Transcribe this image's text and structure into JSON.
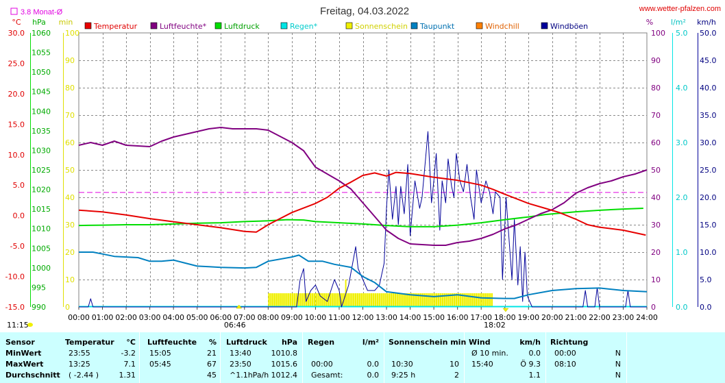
{
  "header": {
    "title": "Freitag, 04.03.2022",
    "site": "www.wetter-pfalzen.com",
    "monthly_avg_label": "3.8 Monat-Ø"
  },
  "colors": {
    "temperature": "#e60000",
    "humidity": "#800080",
    "pressure": "#00dd00",
    "rain": "#00e5e5",
    "sunshine": "#f0f000",
    "dewpoint": "#0080c0",
    "windchill": "#ff8000",
    "gust": "#000099",
    "monthly_avg": "#e000e0",
    "table_bg": "#ccffff"
  },
  "chart_data": {
    "type": "line",
    "x_unit": "time of day",
    "xticks": [
      "00:00",
      "01:00",
      "02:00",
      "03:00",
      "04:00",
      "05:00",
      "06:00",
      "07:00",
      "08:00",
      "09:00",
      "10:00",
      "11:00",
      "12:00",
      "13:00",
      "14:00",
      "15:00",
      "16:00",
      "17:00",
      "18:00",
      "19:00",
      "20:00",
      "21:00",
      "22:00",
      "23:00",
      "24:00"
    ],
    "sunrise": "06:46",
    "sunset": "18:02",
    "sunshine_duration_label": "11:15",
    "legend": [
      "Temperatur",
      "Luftfeuchte*",
      "Luftdruck",
      "Regen*",
      "Sonnenschein",
      "Taupunkt",
      "Windchill",
      "Windböen"
    ],
    "axes": {
      "temp": {
        "unit": "°C",
        "min": -15,
        "max": 30,
        "ticks": [
          "30.0",
          "25.0",
          "20.0",
          "15.0",
          "10.0",
          "5.0",
          "0.0",
          "-5.0",
          "-10.0",
          "-15.0"
        ]
      },
      "pressure": {
        "unit": "hPa",
        "min": 990,
        "max": 1060,
        "ticks": [
          "1060",
          "1055",
          "1050",
          "1045",
          "1040",
          "1035",
          "1030",
          "1025",
          "1020",
          "1015",
          "1010",
          "1005",
          "1000",
          "995",
          "990"
        ]
      },
      "sun": {
        "unit": "min",
        "min": 0,
        "max": 100,
        "ticks": [
          "100",
          "90",
          "80",
          "70",
          "60",
          "50",
          "40",
          "30",
          "20",
          "10",
          "0"
        ]
      },
      "humidity": {
        "unit": "%",
        "min": 0,
        "max": 100,
        "ticks": [
          "100",
          "90",
          "80",
          "70",
          "60",
          "50",
          "40",
          "30",
          "20",
          "10",
          "0"
        ]
      },
      "rain": {
        "unit": "l/m²",
        "min": 0,
        "max": 5,
        "ticks": [
          "5.0",
          "4.0",
          "3.0",
          "2.0",
          "1.0",
          "0.0"
        ]
      },
      "wind": {
        "unit": "km/h",
        "min": 0,
        "max": 50,
        "ticks": [
          "50.0",
          "45.0",
          "40.0",
          "35.0",
          "30.0",
          "25.0",
          "20.0",
          "15.0",
          "10.0",
          "5.0",
          "0.0"
        ]
      }
    },
    "monthly_avg_temp": 3.8,
    "series": [
      {
        "name": "Temperatur",
        "axis": "temp",
        "points": [
          [
            0,
            0.9
          ],
          [
            1,
            0.6
          ],
          [
            2,
            0.1
          ],
          [
            3,
            -0.5
          ],
          [
            4,
            -1.0
          ],
          [
            5,
            -1.5
          ],
          [
            6,
            -2.0
          ],
          [
            7,
            -2.6
          ],
          [
            7.5,
            -2.7
          ],
          [
            8,
            -1.5
          ],
          [
            9,
            0.5
          ],
          [
            10,
            2.0
          ],
          [
            10.5,
            3.0
          ],
          [
            11,
            4.5
          ],
          [
            11.5,
            5.5
          ],
          [
            12,
            6.6
          ],
          [
            12.5,
            7.0
          ],
          [
            13,
            6.5
          ],
          [
            13.4,
            7.1
          ],
          [
            14,
            6.9
          ],
          [
            15,
            6.3
          ],
          [
            16,
            5.8
          ],
          [
            17,
            5.0
          ],
          [
            17.5,
            4.3
          ],
          [
            18,
            3.5
          ],
          [
            19,
            2.0
          ],
          [
            19.7,
            1.2
          ],
          [
            20.3,
            0.5
          ],
          [
            21,
            -0.6
          ],
          [
            21.5,
            -1.5
          ],
          [
            22,
            -1.9
          ],
          [
            23,
            -2.4
          ],
          [
            23.95,
            -3.2
          ]
        ]
      },
      {
        "name": "Luftfeuchte*",
        "axis": "humidity",
        "points": [
          [
            0,
            59
          ],
          [
            0.5,
            60
          ],
          [
            1,
            59
          ],
          [
            1.5,
            60.5
          ],
          [
            2,
            59
          ],
          [
            3,
            58.5
          ],
          [
            3.5,
            60.5
          ],
          [
            4,
            62
          ],
          [
            4.5,
            63
          ],
          [
            5,
            64
          ],
          [
            5.5,
            65
          ],
          [
            6,
            65.5
          ],
          [
            6.5,
            65
          ],
          [
            7,
            65
          ],
          [
            7.5,
            65
          ],
          [
            8,
            64.5
          ],
          [
            9,
            60
          ],
          [
            9.5,
            57
          ],
          [
            10,
            51
          ],
          [
            11,
            46
          ],
          [
            11.5,
            43
          ],
          [
            12,
            38
          ],
          [
            12.5,
            33
          ],
          [
            13,
            28
          ],
          [
            13.5,
            25
          ],
          [
            14,
            23
          ],
          [
            15,
            22.5
          ],
          [
            15.5,
            22.5
          ],
          [
            16,
            23.5
          ],
          [
            16.5,
            24
          ],
          [
            17,
            25
          ],
          [
            17.5,
            26.5
          ],
          [
            18,
            28.5
          ],
          [
            18.5,
            30
          ],
          [
            19,
            32
          ],
          [
            19.5,
            34
          ],
          [
            20,
            35.5
          ],
          [
            20.5,
            38
          ],
          [
            21,
            41.5
          ],
          [
            21.5,
            43.5
          ],
          [
            22,
            45
          ],
          [
            22.5,
            46
          ],
          [
            23,
            47.5
          ],
          [
            23.5,
            48.5
          ],
          [
            24,
            50
          ]
        ]
      },
      {
        "name": "Luftdruck",
        "axis": "pressure",
        "points": [
          [
            0,
            1010.8
          ],
          [
            1,
            1010.9
          ],
          [
            2,
            1011.0
          ],
          [
            3,
            1011.0
          ],
          [
            4,
            1011.2
          ],
          [
            5,
            1011.4
          ],
          [
            6,
            1011.5
          ],
          [
            7,
            1011.8
          ],
          [
            8,
            1012.0
          ],
          [
            8.8,
            1012.3
          ],
          [
            9.5,
            1012.2
          ],
          [
            10,
            1011.8
          ],
          [
            11,
            1011.5
          ],
          [
            12,
            1011.2
          ],
          [
            13,
            1010.8
          ],
          [
            14,
            1010.5
          ],
          [
            15,
            1010.5
          ],
          [
            16,
            1010.9
          ],
          [
            17,
            1011.5
          ],
          [
            18,
            1012.3
          ],
          [
            19,
            1013.0
          ],
          [
            19.7,
            1013.6
          ],
          [
            21,
            1014.3
          ],
          [
            22,
            1014.7
          ],
          [
            23,
            1015.0
          ],
          [
            23.85,
            1015.2
          ]
        ]
      },
      {
        "name": "Taupunkt",
        "axis": "temp",
        "points": [
          [
            0,
            -6.0
          ],
          [
            0.6,
            -6.0
          ],
          [
            1,
            -6.3
          ],
          [
            1.5,
            -6.7
          ],
          [
            2,
            -6.8
          ],
          [
            2.5,
            -6.9
          ],
          [
            3,
            -7.5
          ],
          [
            3.5,
            -7.5
          ],
          [
            4,
            -7.3
          ],
          [
            4.5,
            -7.8
          ],
          [
            5,
            -8.3
          ],
          [
            5.5,
            -8.4
          ],
          [
            6,
            -8.5
          ],
          [
            7,
            -8.6
          ],
          [
            7.5,
            -8.5
          ],
          [
            8,
            -7.5
          ],
          [
            9,
            -6.8
          ],
          [
            9.3,
            -6.5
          ],
          [
            9.7,
            -7.5
          ],
          [
            10.3,
            -7.5
          ],
          [
            10.8,
            -8.0
          ],
          [
            11.5,
            -8.5
          ],
          [
            12,
            -10.0
          ],
          [
            12.5,
            -11.0
          ],
          [
            13,
            -12.5
          ],
          [
            14,
            -13.0
          ],
          [
            15,
            -13.3
          ],
          [
            16,
            -13.0
          ],
          [
            17,
            -13.5
          ],
          [
            18,
            -13.6
          ],
          [
            18.4,
            -13.6
          ],
          [
            19,
            -13.0
          ],
          [
            20,
            -12.3
          ],
          [
            21,
            -12.0
          ],
          [
            22,
            -11.9
          ],
          [
            23,
            -12.3
          ],
          [
            24,
            -12.5
          ]
        ]
      },
      {
        "name": "Windböen",
        "axis": "wind",
        "points": [
          [
            0,
            0
          ],
          [
            0.4,
            0
          ],
          [
            0.5,
            1.5
          ],
          [
            0.6,
            0
          ],
          [
            9.2,
            0
          ],
          [
            9.35,
            5
          ],
          [
            9.5,
            7
          ],
          [
            9.6,
            1
          ],
          [
            9.8,
            3
          ],
          [
            10,
            4
          ],
          [
            10.2,
            2
          ],
          [
            10.5,
            1
          ],
          [
            10.8,
            5
          ],
          [
            11,
            3
          ],
          [
            11.1,
            0
          ],
          [
            11.4,
            4
          ],
          [
            11.7,
            11
          ],
          [
            11.8,
            7
          ],
          [
            12.2,
            3
          ],
          [
            12.5,
            3
          ],
          [
            12.7,
            4
          ],
          [
            12.9,
            8
          ],
          [
            13,
            18
          ],
          [
            13.1,
            25
          ],
          [
            13.25,
            16
          ],
          [
            13.4,
            22
          ],
          [
            13.5,
            15
          ],
          [
            13.6,
            22
          ],
          [
            13.75,
            17
          ],
          [
            13.9,
            26
          ],
          [
            14,
            13
          ],
          [
            14.2,
            23
          ],
          [
            14.4,
            18
          ],
          [
            14.5,
            20
          ],
          [
            14.65,
            27
          ],
          [
            14.75,
            32
          ],
          [
            14.9,
            19
          ],
          [
            15,
            23
          ],
          [
            15.1,
            28
          ],
          [
            15.25,
            14
          ],
          [
            15.35,
            23
          ],
          [
            15.5,
            19
          ],
          [
            15.6,
            27
          ],
          [
            15.75,
            22
          ],
          [
            15.85,
            20
          ],
          [
            15.95,
            28
          ],
          [
            16.1,
            23
          ],
          [
            16.25,
            21
          ],
          [
            16.4,
            26
          ],
          [
            16.55,
            20
          ],
          [
            16.7,
            16
          ],
          [
            16.8,
            25
          ],
          [
            17,
            19
          ],
          [
            17.2,
            23
          ],
          [
            17.35,
            21
          ],
          [
            17.5,
            17
          ],
          [
            17.6,
            21
          ],
          [
            17.8,
            20
          ],
          [
            17.9,
            5
          ],
          [
            18.05,
            20
          ],
          [
            18.15,
            14
          ],
          [
            18.3,
            5
          ],
          [
            18.4,
            16
          ],
          [
            18.55,
            4
          ],
          [
            18.65,
            11
          ],
          [
            18.75,
            1
          ],
          [
            18.85,
            10
          ],
          [
            18.95,
            2
          ],
          [
            19.05,
            1
          ],
          [
            19.15,
            0
          ],
          [
            21.3,
            0
          ],
          [
            21.4,
            3
          ],
          [
            21.5,
            0
          ],
          [
            21.8,
            0
          ],
          [
            21.9,
            3.5
          ],
          [
            22,
            0
          ],
          [
            23.1,
            0
          ],
          [
            23.2,
            3
          ],
          [
            23.3,
            0
          ],
          [
            24,
            0
          ]
        ]
      }
    ],
    "sunshine_bars": {
      "axis": "sun",
      "from": 8.0,
      "to": 17.5,
      "level": 5,
      "extra": [
        [
          11.25,
          10
        ]
      ]
    }
  },
  "table": {
    "headers": [
      {
        "label": "Sensor"
      },
      {
        "label": "Temperatur",
        "unit": "°C"
      },
      {
        "label": "Luftfeuchte",
        "unit": "%"
      },
      {
        "label": "Luftdruck",
        "unit": "hPa"
      },
      {
        "label": "Regen",
        "unit": "l/m²"
      },
      {
        "label": "Sonnenschein min"
      },
      {
        "label": "Wind",
        "unit": "km/h"
      },
      {
        "label": "Richtung"
      }
    ],
    "rows": [
      {
        "label": "MinWert",
        "temp_time": "23:55",
        "temp_val": "-3.2",
        "hum_time": "15:05",
        "hum_val": "21",
        "pres_time": "13:40",
        "pres_val": "1010.8",
        "rain_time": "",
        "rain_val": "",
        "sun_time": "",
        "sun_val": "",
        "wind_time": "Ø 10 min.",
        "wind_val": "0.0",
        "dir_time": "00:00",
        "dir_val": "N"
      },
      {
        "label": "MaxWert",
        "temp_time": "13:25",
        "temp_val": "7.1",
        "hum_time": "05:45",
        "hum_val": "67",
        "pres_time": "23:50",
        "pres_val": "1015.6",
        "rain_time": "00:00",
        "rain_val": "0.0",
        "sun_time": "10:30",
        "sun_val": "10",
        "wind_time": "15:40",
        "wind_val": "Ö 9.3",
        "dir_time": "08:10",
        "dir_val": "N"
      },
      {
        "label": "Durchschnitt",
        "temp_time": "( -2.44 )",
        "temp_val": "1.31",
        "hum_time": "",
        "hum_val": "45",
        "pres_time": "^1.1hPa/h",
        "pres_val": "1012.4",
        "rain_time": "Gesamt:",
        "rain_val": "0.0",
        "sun_time": "9:25 h",
        "sun_val": "2",
        "wind_time": "",
        "wind_val": "1.1",
        "dir_time": "",
        "dir_val": "N"
      }
    ]
  }
}
